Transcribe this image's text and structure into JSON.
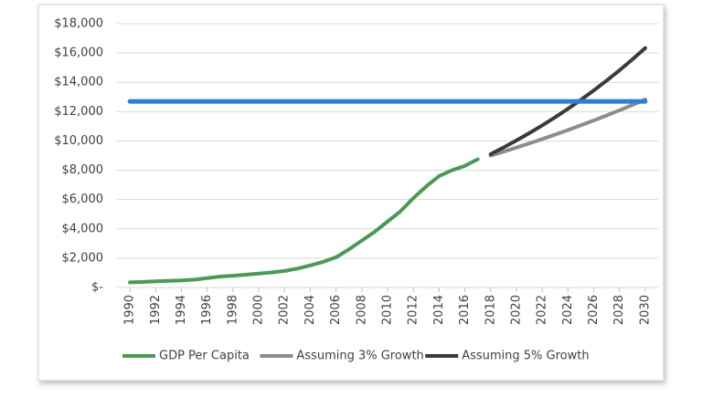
{
  "chart_data": {
    "type": "line",
    "series": [
      {
        "name": "GDP Per Capita",
        "color": "#4a9a55",
        "x": [
          1990,
          1991,
          1992,
          1993,
          1994,
          1995,
          1996,
          1997,
          1998,
          1999,
          2000,
          2001,
          2002,
          2003,
          2004,
          2005,
          2006,
          2007,
          2008,
          2009,
          2010,
          2011,
          2012,
          2013,
          2014,
          2015,
          2016,
          2017
        ],
        "values": [
          350,
          380,
          420,
          450,
          480,
          540,
          640,
          750,
          800,
          870,
          950,
          1030,
          1130,
          1290,
          1510,
          1750,
          2060,
          2600,
          3200,
          3800,
          4500,
          5200,
          6100,
          6900,
          7600,
          8000,
          8300,
          8750
        ]
      },
      {
        "name": "Assuming 3% Growth",
        "color": "#8c8c8c",
        "x": [
          2018,
          2019,
          2020,
          2021,
          2022,
          2023,
          2024,
          2025,
          2026,
          2027,
          2028,
          2029,
          2030
        ],
        "values": [
          9000,
          9270,
          9548,
          9835,
          10130,
          10433,
          10746,
          11069,
          11401,
          11743,
          12095,
          12458,
          12832
        ]
      },
      {
        "name": "Assuming 5% Growth",
        "color": "#3a3a3a",
        "x": [
          2018,
          2019,
          2020,
          2021,
          2022,
          2023,
          2024,
          2025,
          2026,
          2027,
          2028,
          2029,
          2030
        ],
        "values": [
          9100,
          9555,
          10033,
          10534,
          11061,
          11614,
          12195,
          12804,
          13445,
          14117,
          14823,
          15564,
          16342
        ]
      },
      {
        "color": "#2e7fd0",
        "x": [
          1990,
          2030
        ],
        "values": [
          12700,
          12700
        ]
      }
    ],
    "xlim": [
      1989,
      2031
    ],
    "xticks": [
      1990,
      1992,
      1994,
      1996,
      1998,
      2000,
      2002,
      2004,
      2006,
      2008,
      2010,
      2012,
      2014,
      2016,
      2018,
      2020,
      2022,
      2024,
      2026,
      2028,
      2030
    ],
    "ylim": [
      0,
      18000
    ],
    "yticks": [
      {
        "value": 0,
        "label": "$-"
      },
      {
        "value": 2000,
        "label": "$2,000"
      },
      {
        "value": 4000,
        "label": "$4,000"
      },
      {
        "value": 6000,
        "label": "$6,000"
      },
      {
        "value": 8000,
        "label": "$8,000"
      },
      {
        "value": 10000,
        "label": "$10,000"
      },
      {
        "value": 12000,
        "label": "$12,000"
      },
      {
        "value": 14000,
        "label": "$14,000"
      },
      {
        "value": 16000,
        "label": "$16,000"
      },
      {
        "value": 18000,
        "label": "$18,000"
      }
    ],
    "grid": true,
    "legend": "bottom"
  }
}
